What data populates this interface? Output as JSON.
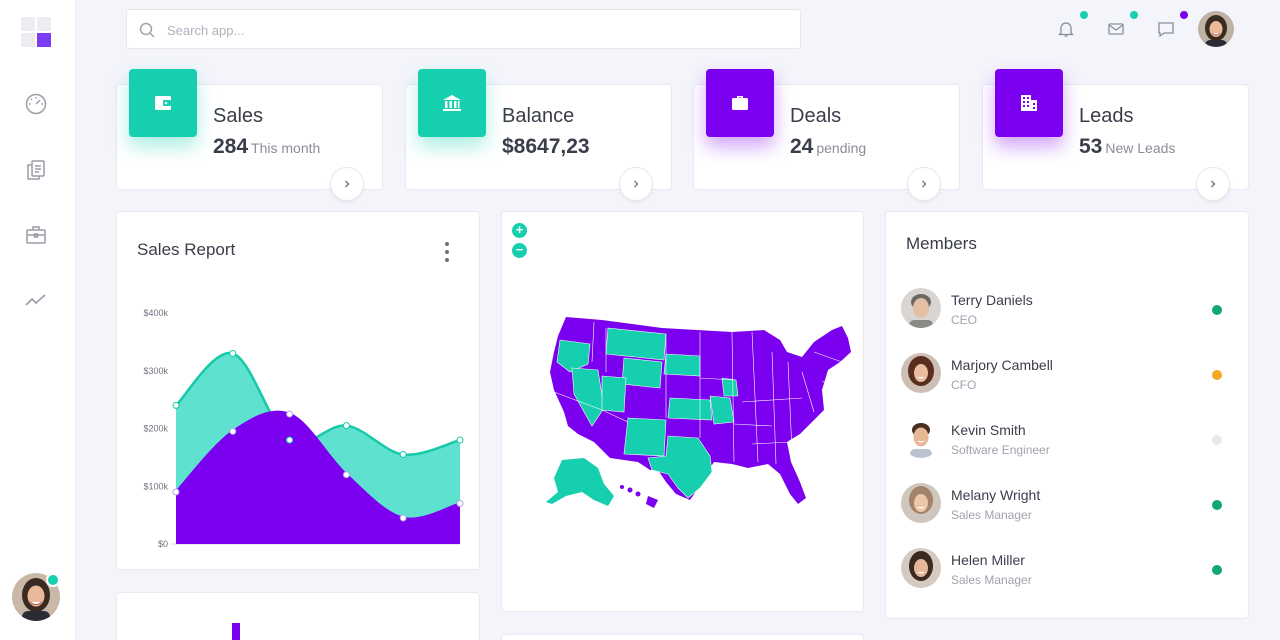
{
  "search": {
    "placeholder": "Search app..."
  },
  "sidebar": {
    "icons": [
      "dashboard-gauge-icon",
      "documents-icon",
      "briefcase-icon",
      "trending-icon"
    ]
  },
  "header": {
    "notification_dot_color": "#16cfae",
    "mail_dot_color": "#16cfae",
    "chat_dot_color": "#7b00f0"
  },
  "stats": [
    {
      "title": "Sales",
      "value": "284",
      "sub": "This month",
      "icon": "wallet-icon",
      "color": "#16cfae"
    },
    {
      "title": "Balance",
      "value": "$8647,23",
      "sub": "",
      "icon": "bank-icon",
      "color": "#16cfae"
    },
    {
      "title": "Deals",
      "value": "24",
      "sub": "pending",
      "icon": "briefcase-icon",
      "color": "#7b00f0"
    },
    {
      "title": "Leads",
      "value": "53",
      "sub": "New Leads",
      "icon": "building-icon",
      "color": "#7b00f0"
    }
  ],
  "sales_report": {
    "title": "Sales Report"
  },
  "chart_data": {
    "type": "area",
    "y_ticks": [
      "$400k",
      "$300k",
      "$200k",
      "$100k",
      "$0"
    ],
    "ylim": [
      0,
      400000
    ],
    "series": [
      {
        "color": "#5ee2cf",
        "line_color": "#16c9a8",
        "values": [
          240000,
          330000,
          180000,
          205000,
          155000,
          180000
        ]
      },
      {
        "color": "#7b00f0",
        "line_color": "#7b00f0",
        "values": [
          90000,
          195000,
          225000,
          120000,
          45000,
          70000
        ]
      }
    ]
  },
  "map": {
    "zoom_in": "+",
    "zoom_out": "−",
    "colors": {
      "purple": "#7b00f0",
      "teal": "#16cfae"
    }
  },
  "members": {
    "title": "Members",
    "list": [
      {
        "name": "Terry Daniels",
        "role": "CEO",
        "status_color": "#0fa67a"
      },
      {
        "name": "Marjory Cambell",
        "role": "CFO",
        "status_color": "#f5a623"
      },
      {
        "name": "Kevin Smith",
        "role": "Software Engineer",
        "status_color": "#e8e8ee"
      },
      {
        "name": "Melany Wright",
        "role": "Sales Manager",
        "status_color": "#0fa67a"
      },
      {
        "name": "Helen Miller",
        "role": "Sales Manager",
        "status_color": "#0fa67a"
      }
    ]
  }
}
